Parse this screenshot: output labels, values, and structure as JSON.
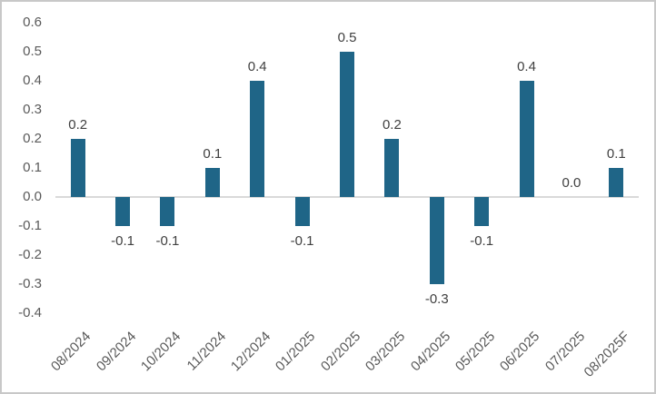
{
  "chart_data": {
    "type": "bar",
    "title": "",
    "xlabel": "",
    "ylabel": "",
    "categories": [
      "08/2024",
      "09/2024",
      "10/2024",
      "11/2024",
      "12/2024",
      "01/2025",
      "02/2025",
      "03/2025",
      "04/2025",
      "05/2025",
      "06/2025",
      "07/2025",
      "08/2025F"
    ],
    "values": [
      0.2,
      -0.1,
      -0.1,
      0.1,
      0.4,
      -0.1,
      0.5,
      0.2,
      -0.3,
      -0.1,
      0.4,
      0.0,
      0.1
    ],
    "data_labels": [
      "0.2",
      "-0.1",
      "-0.1",
      "0.1",
      "0.4",
      "-0.1",
      "0.5",
      "0.2",
      "-0.3",
      "-0.1",
      "0.4",
      "0.0",
      "0.1"
    ],
    "ylim": [
      -0.4,
      0.6
    ],
    "ytick_step": 0.1,
    "yticks": [
      "0.6",
      "0.5",
      "0.4",
      "0.3",
      "0.2",
      "0.1",
      "0.0",
      "-0.1",
      "-0.2",
      "-0.3",
      "-0.4"
    ],
    "grid": false,
    "legend": false,
    "bar_color": "#1f6587",
    "zero_line_color": "#d9d9d9",
    "axis_tick_color": "#595959",
    "data_label_color": "#404040",
    "figure_border_color": "#c8c8c8",
    "background_color": "#ffffff"
  }
}
